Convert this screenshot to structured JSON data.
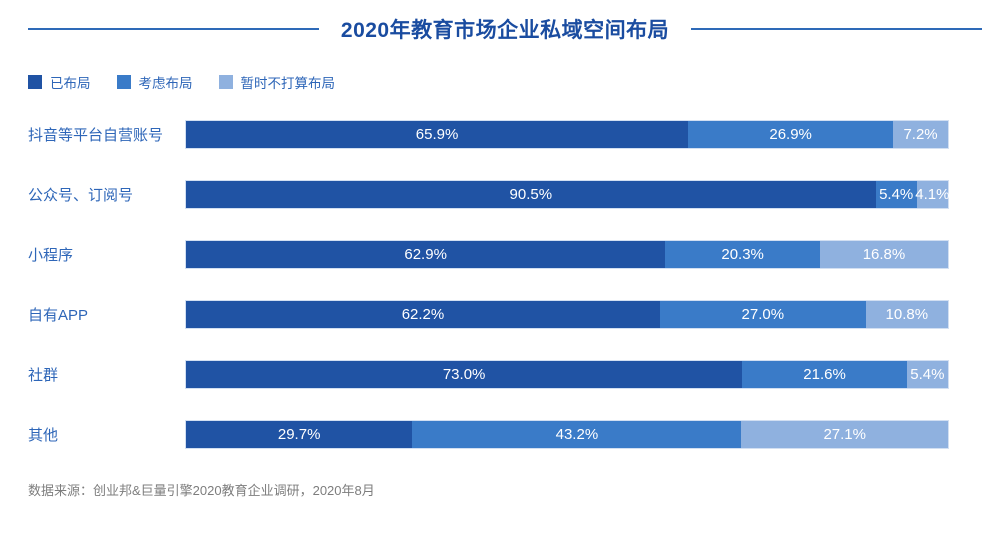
{
  "title": "2020年教育市场企业私域空间布局",
  "source_note": "数据来源：创业邦&巨量引擎2020教育企业调研，2020年8月",
  "colors": {
    "title_text": "#1a4ca0",
    "header_rule": "#2e6ab8",
    "category_label": "#2e66b8",
    "value_label": "#ffffff",
    "source_text": "#7d7d7d",
    "series_laid_out": "#2053a4",
    "series_considering": "#3a7bc8",
    "series_not_planning": "#8fb1df"
  },
  "legend": {
    "position": "top-left",
    "items": [
      {
        "label": "已布局",
        "color": "#2053a4"
      },
      {
        "label": "考虑布局",
        "color": "#3a7bc8"
      },
      {
        "label": "暂时不打算布局",
        "color": "#8fb1df"
      }
    ]
  },
  "chart_data": {
    "type": "bar",
    "orientation": "horizontal",
    "stacked": true,
    "title": "2020年教育市场企业私域空间布局",
    "xlabel": "",
    "ylabel": "",
    "xlim": [
      0,
      100
    ],
    "grid": false,
    "legend_position": "top-left",
    "categories": [
      "抖音等平台自营账号",
      "公众号、订阅号",
      "小程序",
      "自有APP",
      "社群",
      "其他"
    ],
    "series": [
      {
        "name": "已布局",
        "color": "#2053a4",
        "values": [
          65.9,
          90.5,
          62.9,
          62.2,
          73.0,
          29.7
        ],
        "labels": [
          "65.9%",
          "90.5%",
          "62.9%",
          "62.2%",
          "73.0%",
          "29.7%"
        ]
      },
      {
        "name": "考虑布局",
        "color": "#3a7bc8",
        "values": [
          26.9,
          5.4,
          20.3,
          27.0,
          21.6,
          43.2
        ],
        "labels": [
          "26.9%",
          "5.4%",
          "20.3%",
          "27.0%",
          "21.6%",
          "43.2%"
        ]
      },
      {
        "name": "暂时不打算布局",
        "color": "#8fb1df",
        "values": [
          7.2,
          4.1,
          16.8,
          10.8,
          5.4,
          27.1
        ],
        "labels": [
          "7.2%",
          "4.1%",
          "16.8%",
          "10.8%",
          "5.4%",
          "27.1%"
        ]
      }
    ]
  }
}
